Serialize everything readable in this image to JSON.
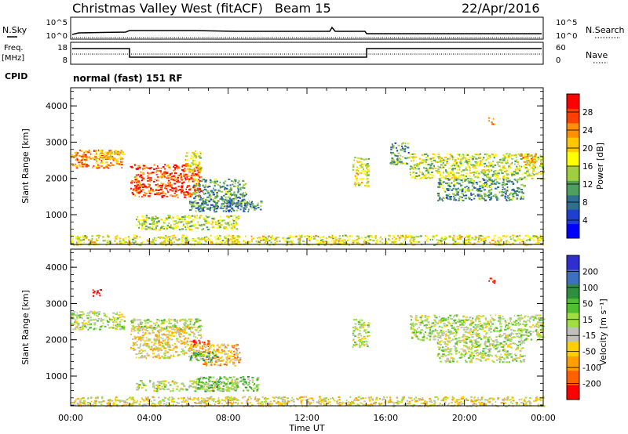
{
  "header": {
    "station": "Christmas Valley West (fitACF)",
    "beam": "Beam 15",
    "date": "22/Apr/2016"
  },
  "panels": {
    "nsky": {
      "left_label": "N.Sky",
      "right_label": "N.Search",
      "left_ticks": [
        "10^5",
        "10^0"
      ],
      "right_ticks": [
        "10^5",
        "10^0"
      ]
    },
    "freq": {
      "left_label_1": "Freq.",
      "left_label_2": "[MHz]",
      "right_label": "Nave",
      "left_ticks": [
        "18",
        "8"
      ],
      "right_ticks": [
        "60",
        "0"
      ]
    },
    "cpid": {
      "label": "CPID",
      "text": "normal (fast) 151 RF"
    }
  },
  "xaxis": {
    "label": "Time UT",
    "ticks": [
      "00:00",
      "04:00",
      "08:00",
      "12:00",
      "16:00",
      "20:00",
      "00:00"
    ]
  },
  "chart_data": [
    {
      "type": "heatmap",
      "parameter": "power",
      "ylabel": "Slant Range [km]",
      "ylim": [
        180,
        4500
      ],
      "yticks": [
        "1000",
        "2000",
        "3000",
        "4000"
      ],
      "xlim_hours": [
        0,
        24
      ],
      "colorbar": {
        "title": "Power [dB]",
        "ticks": [
          "4",
          "8",
          "12",
          "16",
          "20",
          "24",
          "28"
        ],
        "colors": [
          "#0000ff",
          "#1f3fcf",
          "#2f6f8f",
          "#4f9f5f",
          "#9fcf3f",
          "#ffff00",
          "#ffc800",
          "#ff9000",
          "#ff4000",
          "#ff0000"
        ]
      },
      "regions": [
        {
          "t": [
            0.0,
            2.6
          ],
          "r": [
            2300,
            2800
          ],
          "level": 0.75
        },
        {
          "t": [
            1.2,
            2.7
          ],
          "r": [
            2500,
            2800
          ],
          "level": 0.6
        },
        {
          "t": [
            3.0,
            6.6
          ],
          "r": [
            1500,
            2400
          ],
          "level": 0.85
        },
        {
          "t": [
            5.8,
            6.6
          ],
          "r": [
            2200,
            2800
          ],
          "level": 0.55
        },
        {
          "t": [
            3.3,
            8.5
          ],
          "r": [
            600,
            1000
          ],
          "level": 0.5
        },
        {
          "t": [
            6.2,
            8.9
          ],
          "r": [
            1200,
            2000
          ],
          "level": 0.35
        },
        {
          "t": [
            6.0,
            9.7
          ],
          "r": [
            1100,
            1400
          ],
          "level": 0.3
        },
        {
          "t": [
            14.3,
            15.1
          ],
          "r": [
            1800,
            2600
          ],
          "level": 0.55
        },
        {
          "t": [
            16.2,
            17.2
          ],
          "r": [
            2400,
            3000
          ],
          "level": 0.35
        },
        {
          "t": [
            17.2,
            24.0
          ],
          "r": [
            2000,
            2700
          ],
          "level": 0.5
        },
        {
          "t": [
            18.6,
            23.0
          ],
          "r": [
            1400,
            2000
          ],
          "level": 0.35
        },
        {
          "t": [
            22.8,
            23.9
          ],
          "r": [
            2400,
            2700
          ],
          "level": 0.65
        },
        {
          "t": [
            21.2,
            21.5
          ],
          "r": [
            3500,
            3700
          ],
          "level": 0.8
        },
        {
          "t": [
            0.0,
            24.0
          ],
          "r": [
            180,
            450
          ],
          "level": 0.55
        }
      ]
    },
    {
      "type": "heatmap",
      "parameter": "velocity",
      "ylabel": "Slant Range [km]",
      "ylim": [
        180,
        4500
      ],
      "yticks": [
        "1000",
        "2000",
        "3000",
        "4000"
      ],
      "xlim_hours": [
        0,
        24
      ],
      "colorbar": {
        "title": "Velocity [m s⁻¹]",
        "ticks": [
          "200",
          "100",
          "50",
          "15",
          "-15",
          "-50",
          "-100",
          "-200"
        ],
        "colors": [
          "#2f2fcf",
          "#3f6fbf",
          "#2f8f3f",
          "#4fbf2f",
          "#9fdf3f",
          "#c0c0b8",
          "#ffd000",
          "#ffa000",
          "#ff6000",
          "#ff0000"
        ]
      },
      "regions": [
        {
          "t": [
            0.0,
            2.7
          ],
          "r": [
            2300,
            2800
          ],
          "level": 0.5
        },
        {
          "t": [
            3.0,
            6.6
          ],
          "r": [
            1500,
            2400
          ],
          "level": 0.62
        },
        {
          "t": [
            3.0,
            6.6
          ],
          "r": [
            2300,
            2600
          ],
          "level": 0.5
        },
        {
          "t": [
            6.1,
            7.0
          ],
          "r": [
            1800,
            2000
          ],
          "level": 0.95
        },
        {
          "t": [
            6.6,
            8.6
          ],
          "r": [
            1300,
            1900
          ],
          "level": 0.7
        },
        {
          "t": [
            6.0,
            7.4
          ],
          "r": [
            1400,
            1700
          ],
          "level": 0.3
        },
        {
          "t": [
            3.3,
            8.5
          ],
          "r": [
            600,
            900
          ],
          "level": 0.5
        },
        {
          "t": [
            6.2,
            9.5
          ],
          "r": [
            600,
            1000
          ],
          "level": 0.4
        },
        {
          "t": [
            14.3,
            15.1
          ],
          "r": [
            1800,
            2600
          ],
          "level": 0.5
        },
        {
          "t": [
            17.2,
            24.0
          ],
          "r": [
            2000,
            2700
          ],
          "level": 0.5
        },
        {
          "t": [
            18.6,
            23.0
          ],
          "r": [
            1400,
            2000
          ],
          "level": 0.5
        },
        {
          "t": [
            21.2,
            21.5
          ],
          "r": [
            3550,
            3750
          ],
          "level": 0.95
        },
        {
          "t": [
            1.1,
            1.5
          ],
          "r": [
            3200,
            3400
          ],
          "level": 0.95
        },
        {
          "t": [
            0.0,
            24.0
          ],
          "r": [
            180,
            450
          ],
          "level": 0.6
        }
      ]
    }
  ]
}
